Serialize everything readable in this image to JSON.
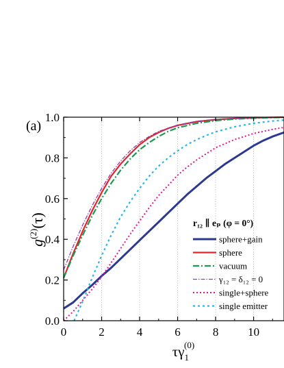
{
  "chart_data": {
    "type": "line",
    "panel_label": "(a)",
    "xlabel": "τγ",
    "xlabel_sub": "1",
    "xlabel_sup": "(0)",
    "ylabel": "g",
    "ylabel_sup": "(2)",
    "ylabel_arg": "(τ)",
    "xlim": [
      0,
      11.6
    ],
    "ylim": [
      0,
      1.0
    ],
    "x_ticks": [
      0,
      2,
      4,
      6,
      8,
      10
    ],
    "y_ticks": [
      0.0,
      0.2,
      0.4,
      0.6,
      0.8,
      1.0
    ],
    "y_tick_labels": [
      "0.0",
      "0.2",
      "0.4",
      "0.6",
      "0.8",
      "1.0"
    ],
    "grid": "vertical dotted",
    "legend_placement": "lower-right",
    "legend_header": "r₁₂ ∥ eₚ  (φ = 0°)",
    "series": [
      {
        "name": "sphere+gain",
        "color": "#2b3990",
        "dash": "solid",
        "width": 3,
        "x": [
          0,
          0.5,
          1,
          1.5,
          2,
          2.5,
          3,
          3.5,
          4,
          4.5,
          5,
          5.5,
          6,
          6.5,
          7,
          7.5,
          8,
          8.5,
          9,
          9.5,
          10,
          10.5,
          11,
          11.6
        ],
        "y": [
          0.06,
          0.09,
          0.135,
          0.175,
          0.22,
          0.26,
          0.305,
          0.35,
          0.395,
          0.44,
          0.485,
          0.53,
          0.575,
          0.62,
          0.66,
          0.7,
          0.735,
          0.77,
          0.8,
          0.83,
          0.86,
          0.885,
          0.905,
          0.925
        ]
      },
      {
        "name": "sphere",
        "color": "#e8202a",
        "dash": "solid",
        "width": 2.2,
        "x": [
          0,
          0.5,
          1,
          1.5,
          2,
          2.5,
          3,
          3.5,
          4,
          4.5,
          5,
          5.5,
          6,
          7,
          8,
          9,
          10,
          11,
          11.6
        ],
        "y": [
          0.21,
          0.33,
          0.44,
          0.54,
          0.63,
          0.71,
          0.77,
          0.82,
          0.865,
          0.9,
          0.925,
          0.945,
          0.96,
          0.978,
          0.988,
          0.994,
          0.997,
          0.999,
          1.0
        ]
      },
      {
        "name": "vacuum",
        "color": "#1a9850",
        "dash": "9,3,2,3",
        "width": 2.2,
        "x": [
          0,
          0.5,
          1,
          1.5,
          2,
          2.5,
          3,
          3.5,
          4,
          4.5,
          5,
          5.5,
          6,
          7,
          8,
          9,
          10,
          11,
          11.6
        ],
        "y": [
          0.21,
          0.32,
          0.42,
          0.515,
          0.6,
          0.675,
          0.74,
          0.795,
          0.84,
          0.875,
          0.905,
          0.93,
          0.948,
          0.97,
          0.983,
          0.991,
          0.995,
          0.998,
          0.999
        ]
      },
      {
        "name": "γ₁₂ = δ₁₂ = 0",
        "color": "#8e3ca8",
        "dash": "6,2,1.5,2",
        "width": 1.3,
        "x": [
          0,
          0.5,
          1,
          1.5,
          2,
          2.5,
          3,
          3.5,
          4,
          4.5,
          5,
          6,
          7,
          8,
          9,
          10,
          11,
          11.6
        ],
        "y": [
          0.25,
          0.365,
          0.47,
          0.565,
          0.65,
          0.725,
          0.785,
          0.835,
          0.875,
          0.905,
          0.93,
          0.962,
          0.98,
          0.99,
          0.995,
          0.998,
          0.999,
          1.0
        ]
      },
      {
        "name": "single+sphere",
        "color": "#e0168a",
        "dash": "2,3",
        "width": 2,
        "x": [
          0,
          0.5,
          1,
          1.5,
          2,
          2.5,
          3,
          3.5,
          4,
          4.5,
          5,
          5.5,
          6,
          6.5,
          7,
          7.5,
          8,
          8.5,
          9,
          10,
          11,
          11.6
        ],
        "y": [
          0.0,
          0.045,
          0.1,
          0.155,
          0.215,
          0.285,
          0.355,
          0.425,
          0.49,
          0.555,
          0.615,
          0.665,
          0.715,
          0.755,
          0.79,
          0.82,
          0.85,
          0.87,
          0.89,
          0.92,
          0.94,
          0.95
        ]
      },
      {
        "name": "single emitter",
        "color": "#29b6e6",
        "dash": "3,4",
        "width": 2.2,
        "x": [
          0.55,
          1,
          1.5,
          2,
          2.5,
          3,
          3.5,
          4,
          4.5,
          5,
          5.5,
          6,
          6.5,
          7,
          7.5,
          8,
          9,
          10,
          11,
          11.6
        ],
        "y": [
          0.0,
          0.095,
          0.21,
          0.32,
          0.42,
          0.51,
          0.585,
          0.65,
          0.71,
          0.76,
          0.8,
          0.835,
          0.865,
          0.89,
          0.91,
          0.928,
          0.953,
          0.97,
          0.981,
          0.986
        ]
      }
    ]
  }
}
